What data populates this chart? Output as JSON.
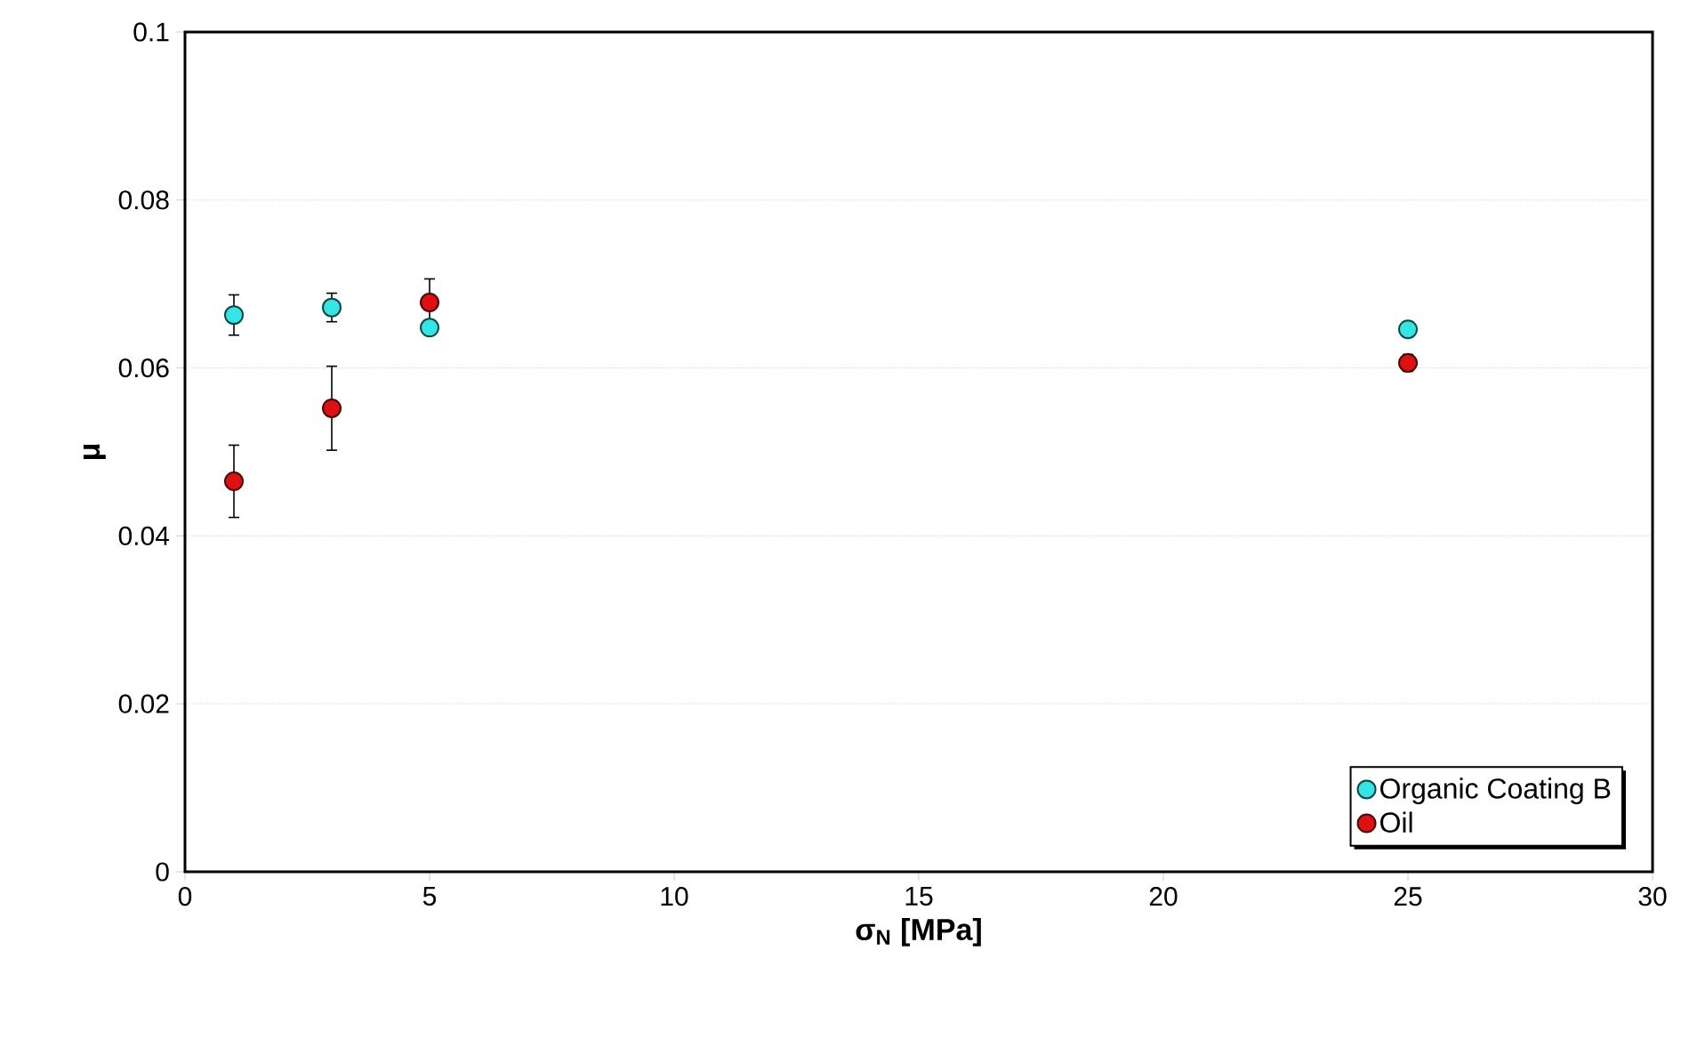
{
  "chart_data": {
    "type": "scatter",
    "xlabel": "σ$_{N}$ [MPa]",
    "ylabel": "μ",
    "xlim": [
      0,
      30
    ],
    "xticks": [
      0,
      5,
      10,
      15,
      20,
      25,
      30
    ],
    "ylim": [
      0,
      0.1
    ],
    "yticks": [
      {
        "value": 0,
        "label": "0"
      },
      {
        "value": 0.02,
        "label": "0.02"
      },
      {
        "value": 0.04,
        "label": "0.04"
      },
      {
        "value": 0.06,
        "label": "0.06"
      },
      {
        "value": 0.08,
        "label": "0.08"
      },
      {
        "value": 0.1,
        "label": "0.1"
      }
    ],
    "grid": "y",
    "legend": "bottom right",
    "marker": "circle",
    "series": [
      {
        "name": "Organic Coating B",
        "color": "#33e6e6",
        "x": [
          1,
          3,
          5,
          25
        ],
        "values": [
          0.0663,
          0.0672,
          0.0648,
          0.0646
        ],
        "errors": [
          0.0024,
          0.0017,
          null,
          null
        ]
      },
      {
        "name": "Oil",
        "color": "#e01010",
        "x": [
          1,
          3,
          5,
          25
        ],
        "values": [
          0.0465,
          0.0552,
          0.0678,
          0.0606
        ],
        "errors": [
          0.0043,
          0.005,
          0.0028,
          0.001
        ]
      }
    ]
  }
}
